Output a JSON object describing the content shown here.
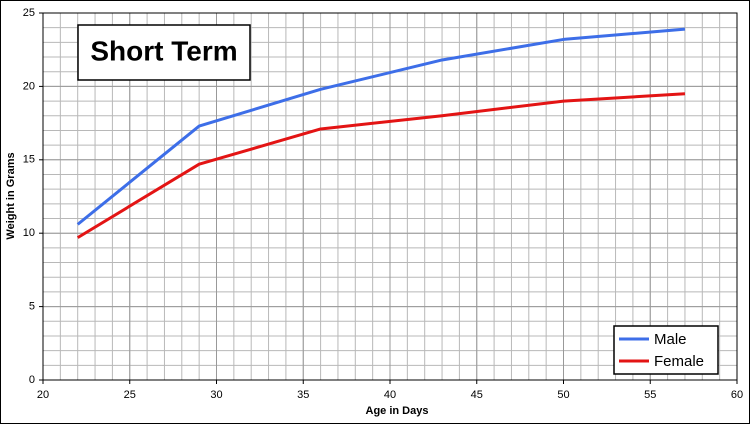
{
  "chart_data": {
    "type": "line",
    "title": "Short Term",
    "x_label": "Age in Days",
    "y_label": "Weight in Grams",
    "x": [
      22,
      29,
      36,
      43,
      50,
      57
    ],
    "series": [
      {
        "name": "Male",
        "color": "#3d6ee8",
        "values": [
          10.6,
          17.3,
          19.8,
          21.8,
          23.2,
          23.9
        ]
      },
      {
        "name": "Female",
        "color": "#e31414",
        "values": [
          9.7,
          14.7,
          17.1,
          18.0,
          19.0,
          19.5
        ]
      }
    ],
    "xlim": [
      20,
      60
    ],
    "xticks": [
      20,
      25,
      30,
      35,
      40,
      45,
      50,
      55,
      60
    ],
    "ylim": [
      0,
      25
    ],
    "yticks": [
      0,
      5,
      10,
      15,
      20,
      25
    ],
    "grid": true,
    "minor_grid_step": 1,
    "legend": "lower right"
  }
}
